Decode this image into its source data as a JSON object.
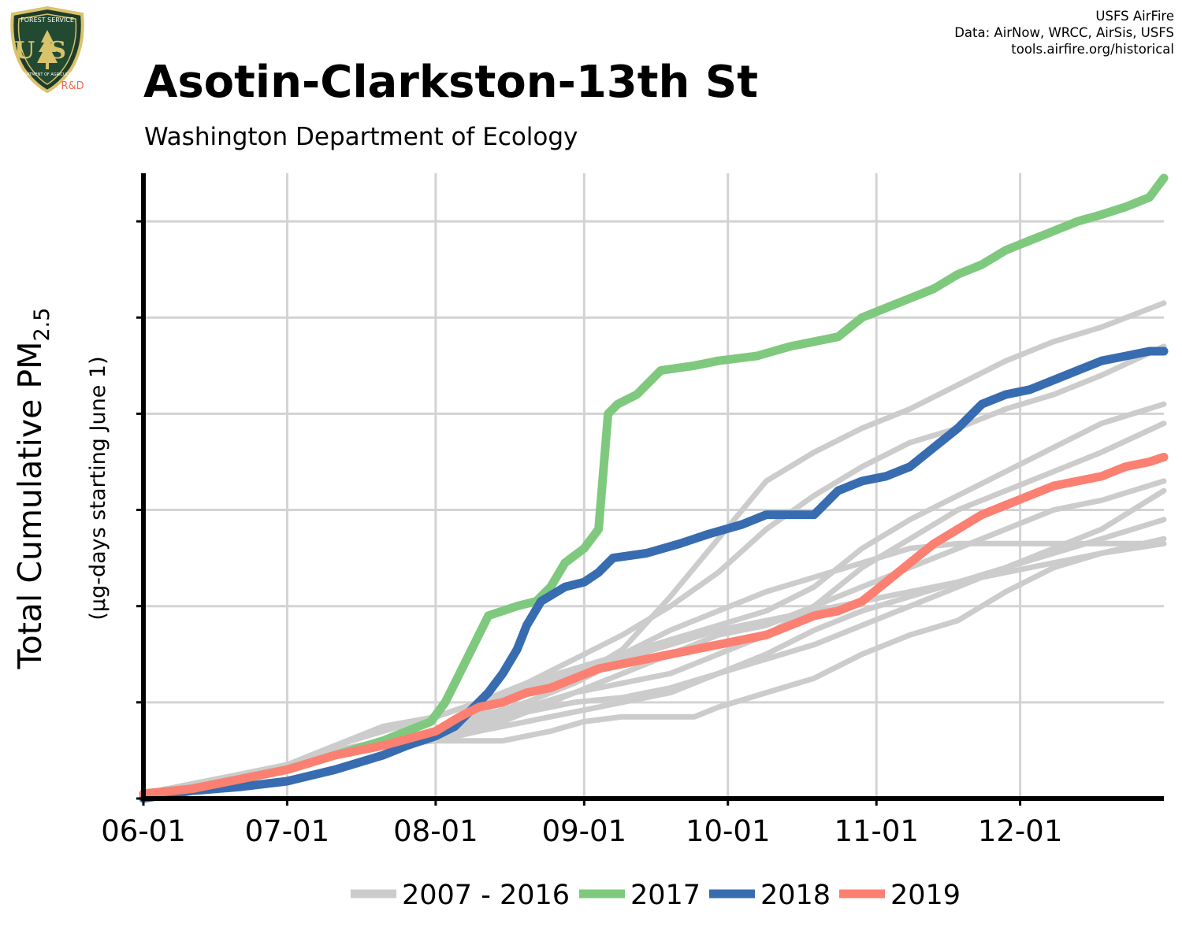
{
  "credits": {
    "line1": "USFS AirFire",
    "line2": "Data: AirNow, WRCC, AirSis, USFS",
    "line3": "tools.airfire.org/historical"
  },
  "logo": {
    "top_text": "FOREST SERVICE",
    "letters": "US",
    "bottom_text": "DEPARTMENT OF AGRICULTURE",
    "rnd": "R&D"
  },
  "colors": {
    "history": "#cccccc",
    "y2017": "#7fc97f",
    "y2018": "#386cb0",
    "y2019": "#fb8072",
    "grid": "#d3d3d3",
    "axis": "#000000"
  },
  "chart_data": {
    "type": "line",
    "title": "Asotin-Clarkston-13th St",
    "subtitle": "Washington Department of Ecology",
    "ylabel_main": "Total Cumulative PM",
    "ylabel_sub": "2.5",
    "ylabel_units": "(µg-days starting June 1)",
    "x_ticks": [
      "06-01",
      "07-01",
      "08-01",
      "09-01",
      "10-01",
      "11-01",
      "12-01"
    ],
    "x_tick_days": [
      0,
      30,
      61,
      92,
      122,
      153,
      183
    ],
    "xlim": [
      0,
      213
    ],
    "ylim": [
      0,
      650
    ],
    "y_ticks": [
      0,
      100,
      200,
      300,
      400,
      500,
      600
    ],
    "y_tick_labels_visible": false,
    "grid": true,
    "legend_position": "bottom",
    "legend": [
      {
        "label": "2007 - 2016",
        "color": "#cccccc"
      },
      {
        "label": "2017",
        "color": "#7fc97f"
      },
      {
        "label": "2018",
        "color": "#386cb0"
      },
      {
        "label": "2019",
        "color": "#fb8072"
      }
    ],
    "history_series": [
      [
        [
          0,
          5
        ],
        [
          10,
          15
        ],
        [
          20,
          25
        ],
        [
          30,
          35
        ],
        [
          40,
          45
        ],
        [
          50,
          55
        ],
        [
          61,
          60
        ],
        [
          70,
          60
        ],
        [
          75,
          60
        ],
        [
          85,
          70
        ],
        [
          92,
          80
        ],
        [
          100,
          85
        ],
        [
          110,
          85
        ],
        [
          115,
          85
        ],
        [
          120,
          95
        ],
        [
          130,
          110
        ],
        [
          140,
          125
        ],
        [
          150,
          150
        ],
        [
          160,
          170
        ],
        [
          170,
          185
        ],
        [
          180,
          215
        ],
        [
          190,
          240
        ],
        [
          200,
          255
        ],
        [
          213,
          265
        ]
      ],
      [
        [
          0,
          5
        ],
        [
          10,
          15
        ],
        [
          20,
          25
        ],
        [
          30,
          35
        ],
        [
          40,
          45
        ],
        [
          50,
          55
        ],
        [
          61,
          60
        ],
        [
          70,
          70
        ],
        [
          80,
          80
        ],
        [
          90,
          90
        ],
        [
          100,
          100
        ],
        [
          110,
          110
        ],
        [
          120,
          130
        ],
        [
          130,
          145
        ],
        [
          140,
          160
        ],
        [
          150,
          180
        ],
        [
          160,
          200
        ],
        [
          170,
          220
        ],
        [
          180,
          240
        ],
        [
          190,
          255
        ],
        [
          200,
          270
        ],
        [
          213,
          290
        ]
      ],
      [
        [
          0,
          5
        ],
        [
          10,
          15
        ],
        [
          20,
          25
        ],
        [
          30,
          35
        ],
        [
          40,
          45
        ],
        [
          50,
          55
        ],
        [
          61,
          65
        ],
        [
          70,
          75
        ],
        [
          80,
          90
        ],
        [
          90,
          100
        ],
        [
          100,
          105
        ],
        [
          110,
          115
        ],
        [
          120,
          130
        ],
        [
          130,
          150
        ],
        [
          140,
          175
        ],
        [
          150,
          195
        ],
        [
          160,
          210
        ],
        [
          170,
          225
        ],
        [
          180,
          240
        ],
        [
          190,
          260
        ],
        [
          200,
          280
        ],
        [
          213,
          320
        ]
      ],
      [
        [
          0,
          5
        ],
        [
          10,
          15
        ],
        [
          20,
          25
        ],
        [
          30,
          35
        ],
        [
          40,
          45
        ],
        [
          50,
          55
        ],
        [
          61,
          65
        ],
        [
          70,
          80
        ],
        [
          80,
          95
        ],
        [
          90,
          110
        ],
        [
          100,
          120
        ],
        [
          110,
          130
        ],
        [
          120,
          150
        ],
        [
          130,
          170
        ],
        [
          140,
          200
        ],
        [
          150,
          240
        ],
        [
          160,
          270
        ],
        [
          170,
          300
        ],
        [
          180,
          320
        ],
        [
          190,
          340
        ],
        [
          200,
          360
        ],
        [
          213,
          390
        ]
      ],
      [
        [
          0,
          5
        ],
        [
          10,
          15
        ],
        [
          20,
          25
        ],
        [
          30,
          35
        ],
        [
          40,
          50
        ],
        [
          50,
          55
        ],
        [
          61,
          60
        ],
        [
          70,
          70
        ],
        [
          80,
          90
        ],
        [
          90,
          110
        ],
        [
          100,
          130
        ],
        [
          110,
          150
        ],
        [
          120,
          170
        ],
        [
          130,
          180
        ],
        [
          140,
          200
        ],
        [
          150,
          220
        ],
        [
          160,
          240
        ],
        [
          170,
          260
        ],
        [
          180,
          280
        ],
        [
          190,
          300
        ],
        [
          200,
          310
        ],
        [
          213,
          330
        ]
      ],
      [
        [
          0,
          5
        ],
        [
          10,
          15
        ],
        [
          20,
          25
        ],
        [
          30,
          35
        ],
        [
          40,
          50
        ],
        [
          50,
          60
        ],
        [
          61,
          70
        ],
        [
          70,
          85
        ],
        [
          80,
          100
        ],
        [
          90,
          120
        ],
        [
          100,
          145
        ],
        [
          110,
          160
        ],
        [
          120,
          175
        ],
        [
          130,
          185
        ],
        [
          140,
          195
        ],
        [
          150,
          205
        ],
        [
          160,
          215
        ],
        [
          170,
          225
        ],
        [
          180,
          235
        ],
        [
          190,
          245
        ],
        [
          200,
          255
        ],
        [
          213,
          270
        ]
      ],
      [
        [
          0,
          5
        ],
        [
          10,
          15
        ],
        [
          20,
          25
        ],
        [
          30,
          35
        ],
        [
          40,
          50
        ],
        [
          50,
          60
        ],
        [
          61,
          70
        ],
        [
          70,
          90
        ],
        [
          80,
          110
        ],
        [
          90,
          125
        ],
        [
          100,
          155
        ],
        [
          110,
          210
        ],
        [
          115,
          240
        ],
        [
          120,
          270
        ],
        [
          130,
          330
        ],
        [
          140,
          360
        ],
        [
          150,
          385
        ],
        [
          160,
          405
        ],
        [
          170,
          430
        ],
        [
          180,
          455
        ],
        [
          190,
          475
        ],
        [
          200,
          490
        ],
        [
          213,
          515
        ]
      ],
      [
        [
          0,
          5
        ],
        [
          10,
          15
        ],
        [
          20,
          25
        ],
        [
          30,
          35
        ],
        [
          40,
          55
        ],
        [
          50,
          70
        ],
        [
          61,
          85
        ],
        [
          70,
          100
        ],
        [
          80,
          120
        ],
        [
          90,
          135
        ],
        [
          100,
          150
        ],
        [
          110,
          175
        ],
        [
          120,
          195
        ],
        [
          130,
          215
        ],
        [
          140,
          230
        ],
        [
          150,
          245
        ],
        [
          160,
          260
        ],
        [
          170,
          265
        ],
        [
          180,
          265
        ],
        [
          190,
          265
        ],
        [
          200,
          265
        ],
        [
          213,
          265
        ]
      ],
      [
        [
          0,
          5
        ],
        [
          10,
          15
        ],
        [
          20,
          25
        ],
        [
          30,
          35
        ],
        [
          40,
          55
        ],
        [
          50,
          70
        ],
        [
          61,
          85
        ],
        [
          70,
          100
        ],
        [
          80,
          115
        ],
        [
          90,
          130
        ],
        [
          100,
          150
        ],
        [
          110,
          165
        ],
        [
          120,
          180
        ],
        [
          130,
          195
        ],
        [
          140,
          220
        ],
        [
          150,
          260
        ],
        [
          160,
          290
        ],
        [
          170,
          315
        ],
        [
          180,
          340
        ],
        [
          190,
          365
        ],
        [
          200,
          390
        ],
        [
          213,
          410
        ]
      ],
      [
        [
          0,
          5
        ],
        [
          10,
          15
        ],
        [
          20,
          25
        ],
        [
          30,
          35
        ],
        [
          40,
          55
        ],
        [
          50,
          75
        ],
        [
          61,
          85
        ],
        [
          70,
          100
        ],
        [
          80,
          120
        ],
        [
          90,
          145
        ],
        [
          100,
          170
        ],
        [
          110,
          200
        ],
        [
          120,
          235
        ],
        [
          130,
          280
        ],
        [
          140,
          315
        ],
        [
          150,
          345
        ],
        [
          160,
          370
        ],
        [
          170,
          385
        ],
        [
          180,
          405
        ],
        [
          190,
          420
        ],
        [
          200,
          440
        ],
        [
          213,
          470
        ]
      ]
    ],
    "series": [
      {
        "name": "2017",
        "color": "#7fc97f",
        "points": [
          [
            0,
            5
          ],
          [
            10,
            10
          ],
          [
            20,
            20
          ],
          [
            30,
            30
          ],
          [
            40,
            45
          ],
          [
            50,
            60
          ],
          [
            60,
            80
          ],
          [
            63,
            100
          ],
          [
            65,
            120
          ],
          [
            68,
            150
          ],
          [
            72,
            190
          ],
          [
            75,
            195
          ],
          [
            78,
            200
          ],
          [
            82,
            205
          ],
          [
            85,
            220
          ],
          [
            88,
            245
          ],
          [
            92,
            260
          ],
          [
            95,
            280
          ],
          [
            97,
            400
          ],
          [
            99,
            410
          ],
          [
            103,
            420
          ],
          [
            108,
            445
          ],
          [
            115,
            450
          ],
          [
            120,
            455
          ],
          [
            128,
            460
          ],
          [
            135,
            470
          ],
          [
            140,
            475
          ],
          [
            145,
            480
          ],
          [
            150,
            500
          ],
          [
            155,
            510
          ],
          [
            160,
            520
          ],
          [
            165,
            530
          ],
          [
            170,
            545
          ],
          [
            175,
            555
          ],
          [
            180,
            570
          ],
          [
            185,
            580
          ],
          [
            190,
            590
          ],
          [
            195,
            600
          ],
          [
            200,
            607
          ],
          [
            205,
            615
          ],
          [
            210,
            625
          ],
          [
            213,
            645
          ]
        ]
      },
      {
        "name": "2018",
        "color": "#386cb0",
        "points": [
          [
            0,
            0
          ],
          [
            10,
            8
          ],
          [
            20,
            12
          ],
          [
            30,
            18
          ],
          [
            40,
            30
          ],
          [
            50,
            45
          ],
          [
            55,
            55
          ],
          [
            61,
            65
          ],
          [
            65,
            75
          ],
          [
            68,
            90
          ],
          [
            72,
            110
          ],
          [
            75,
            130
          ],
          [
            78,
            155
          ],
          [
            80,
            180
          ],
          [
            83,
            205
          ],
          [
            88,
            220
          ],
          [
            92,
            225
          ],
          [
            95,
            235
          ],
          [
            98,
            250
          ],
          [
            105,
            255
          ],
          [
            112,
            265
          ],
          [
            118,
            275
          ],
          [
            125,
            285
          ],
          [
            130,
            295
          ],
          [
            135,
            295
          ],
          [
            140,
            295
          ],
          [
            145,
            320
          ],
          [
            150,
            330
          ],
          [
            155,
            335
          ],
          [
            160,
            345
          ],
          [
            165,
            365
          ],
          [
            170,
            385
          ],
          [
            175,
            410
          ],
          [
            180,
            420
          ],
          [
            185,
            425
          ],
          [
            190,
            435
          ],
          [
            195,
            445
          ],
          [
            200,
            455
          ],
          [
            205,
            460
          ],
          [
            210,
            465
          ],
          [
            213,
            465
          ]
        ]
      },
      {
        "name": "2019",
        "color": "#fb8072",
        "points": [
          [
            0,
            5
          ],
          [
            10,
            10
          ],
          [
            20,
            20
          ],
          [
            30,
            30
          ],
          [
            40,
            45
          ],
          [
            50,
            55
          ],
          [
            61,
            70
          ],
          [
            66,
            85
          ],
          [
            70,
            95
          ],
          [
            75,
            100
          ],
          [
            80,
            110
          ],
          [
            85,
            115
          ],
          [
            90,
            125
          ],
          [
            95,
            135
          ],
          [
            100,
            140
          ],
          [
            110,
            150
          ],
          [
            120,
            160
          ],
          [
            130,
            170
          ],
          [
            135,
            180
          ],
          [
            140,
            190
          ],
          [
            145,
            195
          ],
          [
            150,
            205
          ],
          [
            155,
            225
          ],
          [
            160,
            245
          ],
          [
            165,
            265
          ],
          [
            170,
            280
          ],
          [
            175,
            295
          ],
          [
            180,
            305
          ],
          [
            185,
            315
          ],
          [
            190,
            325
          ],
          [
            195,
            330
          ],
          [
            200,
            335
          ],
          [
            205,
            345
          ],
          [
            210,
            350
          ],
          [
            213,
            355
          ]
        ]
      }
    ]
  }
}
